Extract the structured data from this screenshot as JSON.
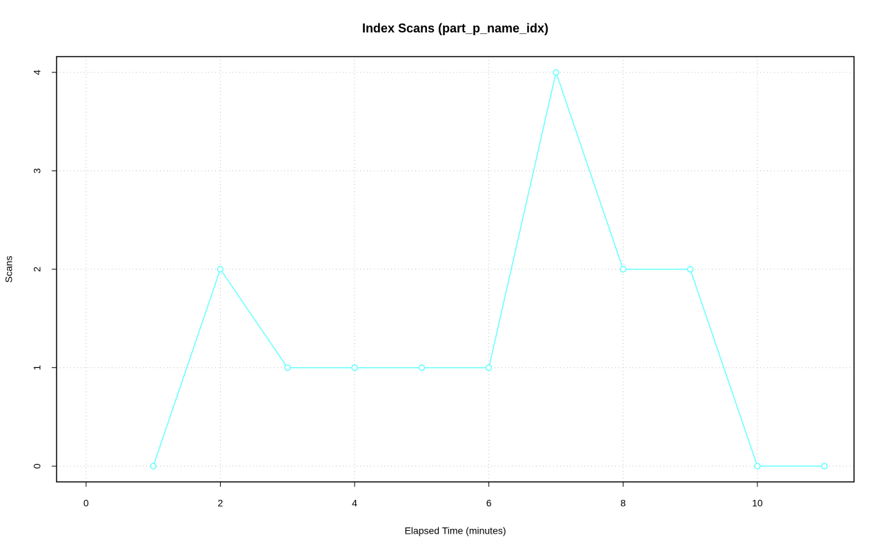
{
  "chart_data": {
    "type": "line",
    "title": "Index Scans (part_p_name_idx)",
    "x_label": "Elapsed Time (minutes)",
    "y_label": "Scans",
    "x": [
      1,
      2,
      3,
      4,
      5,
      6,
      7,
      8,
      9,
      10,
      11
    ],
    "values": [
      0,
      2,
      1,
      1,
      1,
      1,
      4,
      2,
      2,
      0,
      0
    ],
    "color": "#66ffff",
    "xlim": [
      -0.44,
      11.44
    ],
    "ylim": [
      -0.16,
      4.16
    ],
    "xticks": [
      0,
      2,
      4,
      6,
      8,
      10
    ],
    "yticks": [
      0,
      1,
      2,
      3,
      4
    ],
    "grid": true
  }
}
